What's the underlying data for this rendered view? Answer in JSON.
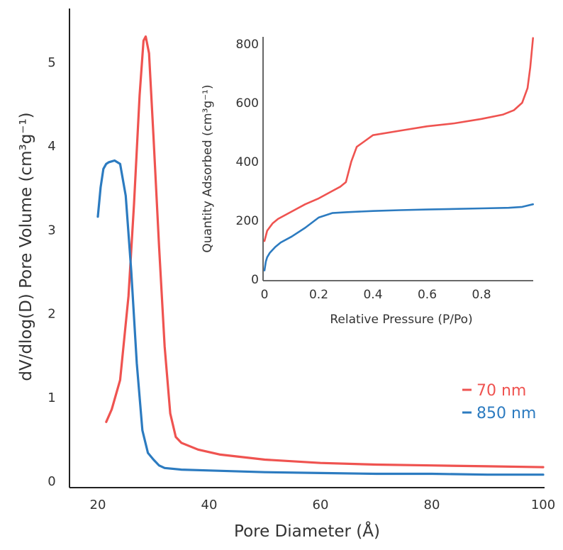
{
  "chart_data": [
    {
      "type": "line",
      "title": "",
      "xlabel": "Pore Diameter (Å)",
      "ylabel": "dV/dlog(D) Pore Volume (cm³g⁻¹)",
      "xlim": [
        15,
        100
      ],
      "ylim": [
        0,
        5.5
      ],
      "xticks": [
        20,
        40,
        60,
        80,
        100
      ],
      "yticks": [
        0,
        1,
        2,
        3,
        4,
        5
      ],
      "grid": false,
      "legend_position": "center-right",
      "series": [
        {
          "name": "70 nm",
          "color": "#ef5350",
          "x": [
            21.5,
            22.5,
            24,
            25.5,
            26.5,
            27.5,
            28.2,
            28.6,
            29.2,
            30,
            31,
            32,
            33,
            34,
            35,
            38,
            42,
            50,
            60,
            70,
            80,
            90,
            100
          ],
          "y": [
            0.7,
            0.85,
            1.2,
            2.2,
            3.3,
            4.6,
            5.25,
            5.3,
            5.1,
            4.1,
            2.8,
            1.6,
            0.8,
            0.52,
            0.45,
            0.37,
            0.31,
            0.25,
            0.21,
            0.19,
            0.18,
            0.17,
            0.16
          ]
        },
        {
          "name": "850 nm",
          "color": "#2c7bc0",
          "x": [
            20,
            20.5,
            21,
            21.5,
            22,
            23,
            24,
            25,
            26,
            27,
            28,
            29,
            30,
            31,
            32,
            35,
            40,
            50,
            60,
            70,
            80,
            90,
            100
          ],
          "y": [
            3.15,
            3.5,
            3.72,
            3.78,
            3.8,
            3.82,
            3.78,
            3.4,
            2.5,
            1.4,
            0.6,
            0.33,
            0.25,
            0.18,
            0.15,
            0.13,
            0.12,
            0.1,
            0.09,
            0.08,
            0.08,
            0.07,
            0.07
          ]
        }
      ]
    },
    {
      "type": "line",
      "title": "",
      "xlabel": "Relative Pressure (P/Po)",
      "ylabel": "Quantity Adsorbed (cm³g⁻¹)",
      "xlim": [
        0,
        1.0
      ],
      "ylim": [
        0,
        820
      ],
      "xticks": [
        0,
        0.2,
        0.4,
        0.6,
        0.8
      ],
      "yticks": [
        0,
        200,
        400,
        600,
        800
      ],
      "grid": false,
      "series": [
        {
          "name": "70 nm",
          "color": "#ef5350",
          "x": [
            0.0,
            0.01,
            0.03,
            0.05,
            0.1,
            0.15,
            0.2,
            0.25,
            0.28,
            0.3,
            0.32,
            0.34,
            0.37,
            0.4,
            0.5,
            0.6,
            0.7,
            0.8,
            0.88,
            0.92,
            0.95,
            0.97,
            0.98,
            0.99
          ],
          "y": [
            130,
            165,
            190,
            205,
            230,
            255,
            275,
            300,
            315,
            330,
            400,
            450,
            470,
            490,
            505,
            520,
            530,
            545,
            560,
            575,
            600,
            650,
            720,
            820
          ]
        },
        {
          "name": "850 nm",
          "color": "#2c7bc0",
          "x": [
            0.0,
            0.005,
            0.01,
            0.02,
            0.04,
            0.06,
            0.1,
            0.15,
            0.2,
            0.25,
            0.3,
            0.4,
            0.5,
            0.6,
            0.7,
            0.8,
            0.9,
            0.95,
            0.99
          ],
          "y": [
            30,
            60,
            75,
            90,
            110,
            125,
            145,
            175,
            210,
            225,
            228,
            232,
            235,
            237,
            239,
            241,
            243,
            246,
            255
          ]
        }
      ]
    }
  ]
}
